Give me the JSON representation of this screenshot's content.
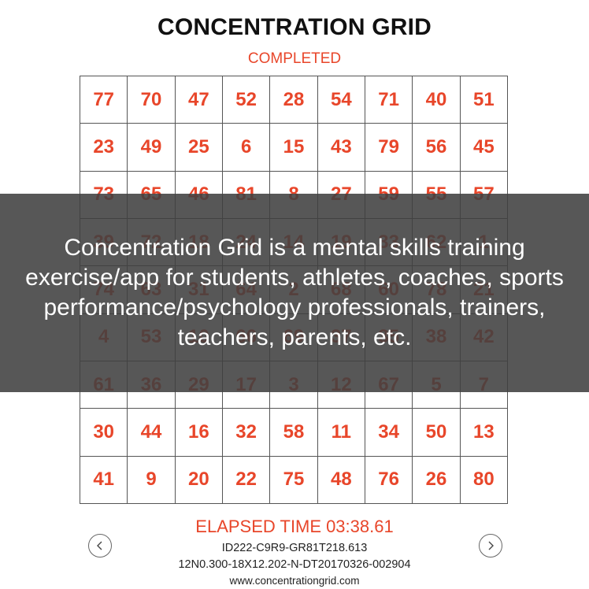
{
  "header": {
    "title": "CONCENTRATION GRID",
    "status": "COMPLETED"
  },
  "grid": {
    "rows": [
      [
        "77",
        "70",
        "47",
        "52",
        "28",
        "54",
        "71",
        "40",
        "51"
      ],
      [
        "23",
        "49",
        "25",
        "6",
        "15",
        "43",
        "79",
        "56",
        "45"
      ],
      [
        "73",
        "65",
        "46",
        "81",
        "8",
        "27",
        "59",
        "55",
        "57"
      ],
      [
        "39",
        "72",
        "18",
        "24",
        "14",
        "19",
        "33",
        "62",
        "1"
      ],
      [
        "74",
        "63",
        "31",
        "64",
        "2",
        "68",
        "60",
        "78",
        "21"
      ],
      [
        "4",
        "53",
        "10",
        "66",
        "69",
        "37",
        "35",
        "38",
        "42"
      ],
      [
        "61",
        "36",
        "29",
        "17",
        "3",
        "12",
        "67",
        "5",
        "7"
      ],
      [
        "30",
        "44",
        "16",
        "32",
        "58",
        "11",
        "34",
        "50",
        "13"
      ],
      [
        "41",
        "9",
        "20",
        "22",
        "75",
        "48",
        "76",
        "26",
        "80"
      ]
    ]
  },
  "footer": {
    "elapsed_label": "ELAPSED TIME",
    "elapsed_value": "03:38.61",
    "id_line": "ID222-C9R9-GR81T218.613",
    "detail_line": "12N0.300-18X12.202-N-DT20170326-002904",
    "website": "www.concentrationgrid.com"
  },
  "navigation": {
    "prev_icon": "chevron-left-icon",
    "next_icon": "chevron-right-icon"
  },
  "overlay": {
    "text": "Concentration Grid is a mental skills training exercise/app for students, athletes, coaches, sports performance/psychology professionals, trainers, teachers, parents, etc."
  },
  "colors": {
    "accent": "#e8462a",
    "title": "#111111",
    "overlay_bg": "#404040"
  }
}
